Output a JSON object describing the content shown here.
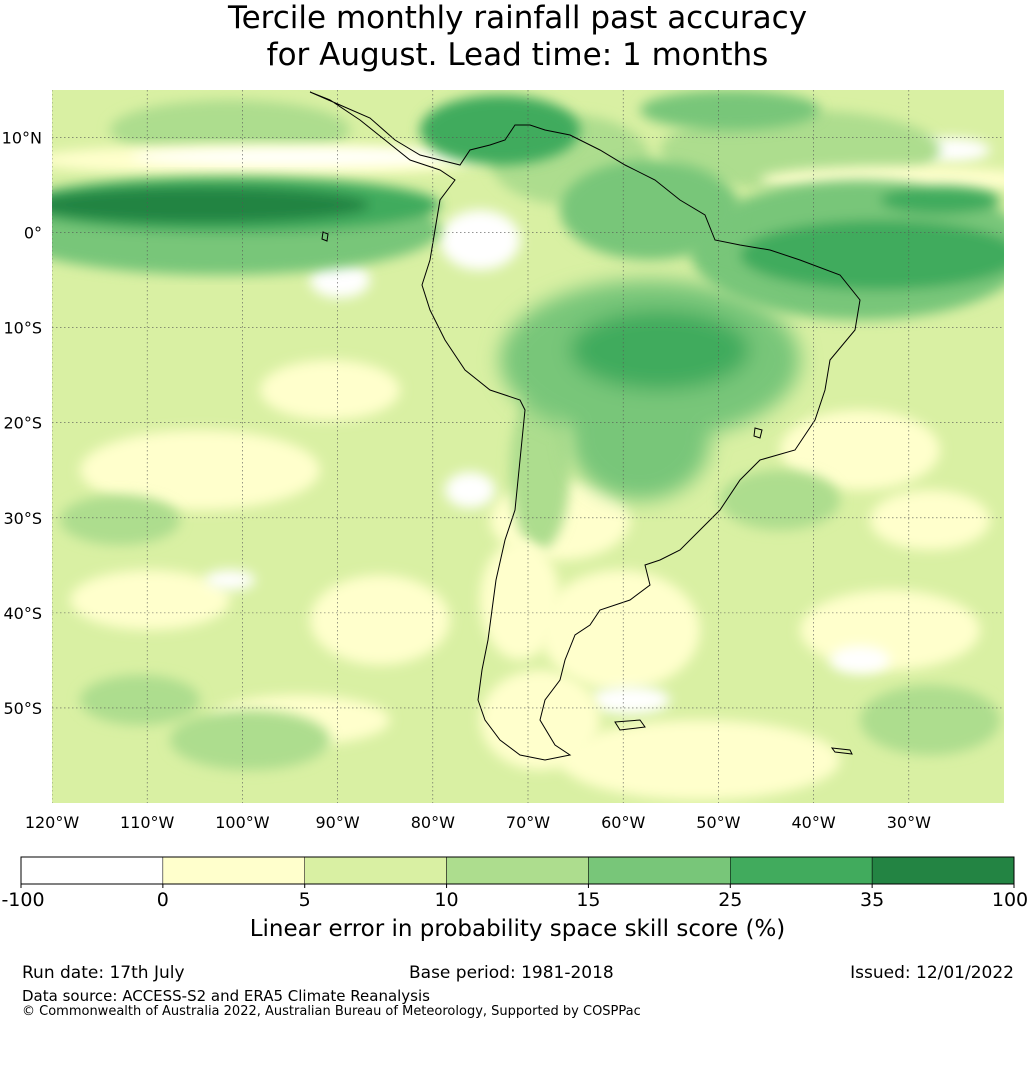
{
  "title": {
    "line1": "Tercile monthly rainfall past accuracy",
    "line2": "for August. Lead time: 1 months"
  },
  "map": {
    "lat_labels": [
      "10°N",
      "0°",
      "10°S",
      "20°S",
      "30°S",
      "40°S",
      "50°S"
    ],
    "lon_labels": [
      "120°W",
      "110°W",
      "100°W",
      "90°W",
      "80°W",
      "70°W",
      "60°W",
      "50°W",
      "40°W",
      "30°W"
    ],
    "extent": {
      "lon_min": -120,
      "lon_max": -20,
      "lat_min": -60,
      "lat_max": 15
    },
    "grid": "dotted graticule every 10°"
  },
  "colorbar": {
    "tick_labels": [
      "-100",
      "0",
      "5",
      "10",
      "15",
      "25",
      "35",
      "100"
    ],
    "colors": [
      "#ffffff",
      "#ffffcc",
      "#d9f0a3",
      "#addd8e",
      "#78c679",
      "#41ab5d",
      "#238443"
    ],
    "label": "Linear error in probability space skill score (%)"
  },
  "footer": {
    "run_date": "Run date: 17th July",
    "base_period": "Base period: 1981-2018",
    "issued": "Issued: 12/01/2022",
    "data_source": "Data source: ACCESS-S2 and ERA5 Climate Reanalysis",
    "copyright": "© Commonwealth of Australia 2022, Australian Bureau of Meteorology, Supported by COSPPac"
  }
}
